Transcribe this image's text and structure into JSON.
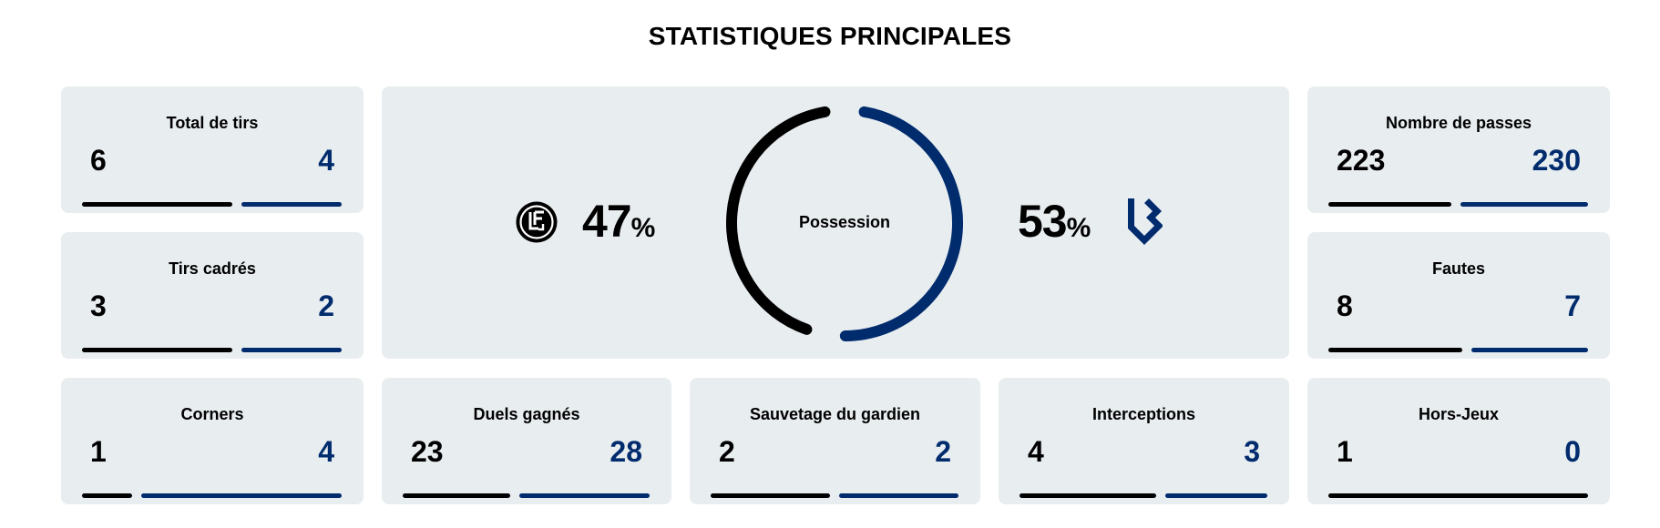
{
  "header": {
    "title": "STATISTIQUES PRINCIPALES"
  },
  "colors": {
    "home": "#000000",
    "away": "#002b6d",
    "card_bg": "#e8edf0"
  },
  "teams": {
    "home": {
      "logo": "fc-lugano-crest-icon"
    },
    "away": {
      "logo": "fc-lausanne-sport-crest-icon"
    }
  },
  "possession": {
    "label": "Possession",
    "home": "47",
    "away": "53",
    "unit": "%"
  },
  "stats": {
    "total_tirs": {
      "label": "Total de tirs",
      "home": "6",
      "away": "4"
    },
    "tirs_cadres": {
      "label": "Tirs cadrés",
      "home": "3",
      "away": "2"
    },
    "corners": {
      "label": "Corners",
      "home": "1",
      "away": "4"
    },
    "duels": {
      "label": "Duels gagnés",
      "home": "23",
      "away": "28"
    },
    "sauvetage": {
      "label": "Sauvetage du gardien",
      "home": "2",
      "away": "2"
    },
    "interceptions": {
      "label": "Interceptions",
      "home": "4",
      "away": "3"
    },
    "passes": {
      "label": "Nombre de passes",
      "home": "223",
      "away": "230"
    },
    "fautes": {
      "label": "Fautes",
      "home": "8",
      "away": "7"
    },
    "hors_jeux": {
      "label": "Hors-Jeux",
      "home": "1",
      "away": "0"
    }
  }
}
